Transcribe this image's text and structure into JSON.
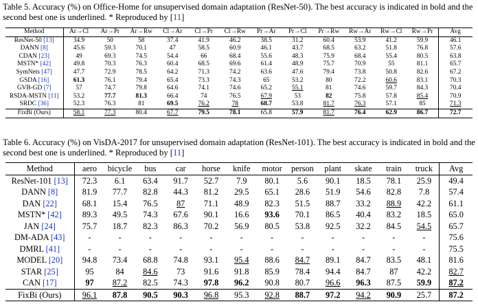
{
  "table5": {
    "caption_prefix": "Table 5. Accuracy (%) on Office-Home for unsupervised domain adaptation (ResNet-50). The best accuracy is indicated in bold and the second best one is underlined. * Reproduced by [",
    "caption_ref": "11",
    "caption_suffix": "]",
    "headers": [
      "Method",
      "Ar→Cl",
      "Ar→Pr",
      "Ar→Rw",
      "Cl→Ar",
      "Cl→Pr",
      "Cl→Rw",
      "Pr→Ar",
      "Pr→Cl",
      "Pr→Rw",
      "Rw→Ar",
      "Rw→Cl",
      "Rw→Pr",
      "Avg"
    ],
    "rows": [
      {
        "method": "ResNet-50 ",
        "ref": "[13]",
        "cells": [
          "34.9",
          "50",
          "58",
          "37.4",
          "41.9",
          "46.2",
          "38.5",
          "31.2",
          "60.4",
          "53.9",
          "41.2",
          "59.9",
          "46.1"
        ],
        "bold": [],
        "under": []
      },
      {
        "method": "DANN ",
        "ref": "[8]",
        "cells": [
          "45.6",
          "59.3",
          "70.1",
          "47",
          "58.5",
          "60.9",
          "46.1",
          "43.7",
          "68.5",
          "63.2",
          "51.8",
          "76.8",
          "57.6"
        ],
        "bold": [],
        "under": []
      },
      {
        "method": "CDAN ",
        "ref": "[23]",
        "cells": [
          "49",
          "69.3",
          "74.5",
          "54.4",
          "66",
          "68.4",
          "55.6",
          "48.3",
          "75.9",
          "68.4",
          "55.4",
          "80.5",
          "63.8"
        ],
        "bold": [],
        "under": []
      },
      {
        "method": "MSTN* ",
        "ref": "[42]",
        "cells": [
          "49.8",
          "70.3",
          "76.3",
          "60.4",
          "68.5",
          "69.6",
          "61.4",
          "48.9",
          "75.7",
          "70.9",
          "55",
          "81.1",
          "65.7"
        ],
        "bold": [],
        "under": []
      },
      {
        "method": "SymNets ",
        "ref": "[47]",
        "cells": [
          "47.7",
          "72.9",
          "78.5",
          "64.2",
          "71.3",
          "74.2",
          "63.6",
          "47.6",
          "79.4",
          "73.8",
          "50.8",
          "82.6",
          "67.2"
        ],
        "bold": [],
        "under": []
      },
      {
        "method": "GSDA ",
        "ref": "[16]",
        "cells": [
          "61.3",
          "76.1",
          "79.4",
          "65.4",
          "73.3",
          "74.3",
          "65",
          "53.2",
          "80",
          "72.2",
          "60.6",
          "83.1",
          "70.3"
        ],
        "bold": [
          0
        ],
        "under": [
          10
        ]
      },
      {
        "method": "GVB-GD ",
        "ref": "[7]",
        "cells": [
          "57",
          "74.7",
          "79.8",
          "64.6",
          "74.1",
          "74.6",
          "65.2",
          "55.1",
          "81",
          "74.6",
          "59.7",
          "84.3",
          "70.4"
        ],
        "bold": [],
        "under": [
          7
        ]
      },
      {
        "method": "RSDA-MSTN ",
        "ref": "[11]",
        "cells": [
          "53.2",
          "77.7",
          "81.3",
          "66.4",
          "74",
          "76.5",
          "67.9",
          "53",
          "82",
          "75.8",
          "57.8",
          "85.4",
          "70.9"
        ],
        "bold": [
          1,
          2,
          8
        ],
        "under": [
          6,
          11
        ]
      },
      {
        "method": "SRDC ",
        "ref": "[36]",
        "cells": [
          "52.3",
          "76.3",
          "81",
          "69.5",
          "76.2",
          "78",
          "68.7",
          "53.8",
          "81.7",
          "76.3",
          "57.1",
          "85",
          "71.3"
        ],
        "bold": [
          3,
          6
        ],
        "under": [
          4,
          5,
          8,
          9,
          12
        ]
      },
      {
        "method": "FixBi (Ours)",
        "ref": "",
        "cells": [
          "58.1",
          "77.3",
          "80.4",
          "67.7",
          "79.5",
          "78.1",
          "65.8",
          "57.9",
          "81.7",
          "76.4",
          "62.9",
          "86.7",
          "72.7"
        ],
        "bold": [
          4,
          5,
          7,
          9,
          10,
          11,
          12
        ],
        "under": [
          0,
          1,
          3,
          8
        ]
      }
    ]
  },
  "table6": {
    "caption_prefix": "Table 6. Accuracy (%) on VisDA-2017 for unsupervised domain adaptation (ResNet-101). The best accuracy is indicated in bold and the second best one is underlined. * Reproduced by [",
    "caption_ref": "11",
    "caption_suffix": "]",
    "headers": [
      "Method",
      "aero",
      "bicycle",
      "bus",
      "car",
      "horse",
      "knife",
      "motor",
      "person",
      "plant",
      "skate",
      "train",
      "truck",
      "Avg"
    ],
    "rows": [
      {
        "method": "ResNet-101 ",
        "ref": "[13]",
        "cells": [
          "72.3",
          "6.1",
          "63.4",
          "91.7",
          "52.7",
          "7.9",
          "80.1",
          "5.6",
          "90.1",
          "18.5",
          "78.1",
          "25.9",
          "49.4"
        ],
        "bold": [],
        "under": []
      },
      {
        "method": "DANN ",
        "ref": "[8]",
        "cells": [
          "81.9",
          "77.7",
          "82.8",
          "44.3",
          "81.2",
          "29.5",
          "65.1",
          "28.6",
          "51.9",
          "54.6",
          "82.8",
          "7.8",
          "57.4"
        ],
        "bold": [],
        "under": []
      },
      {
        "method": "DAN ",
        "ref": "[22]",
        "cells": [
          "68.1",
          "15.4",
          "76.5",
          "87",
          "71.1",
          "48.9",
          "82.3",
          "51.5",
          "88.7",
          "33.2",
          "88.9",
          "42.2",
          "61.1"
        ],
        "bold": [],
        "under": [
          3,
          10
        ]
      },
      {
        "method": "MSTN* ",
        "ref": "[42]",
        "cells": [
          "89.3",
          "49.5",
          "74.3",
          "67.6",
          "90.1",
          "16.6",
          "93.6",
          "70.1",
          "86.5",
          "40.4",
          "83.2",
          "18.5",
          "65.0"
        ],
        "bold": [
          6
        ],
        "under": []
      },
      {
        "method": "JAN ",
        "ref": "[24]",
        "cells": [
          "75.7",
          "18.7",
          "82.3",
          "86.3",
          "70.2",
          "56.9",
          "80.5",
          "53.8",
          "92.5",
          "32.2",
          "84.5",
          "54.5",
          "65.7"
        ],
        "bold": [],
        "under": [
          11
        ]
      },
      {
        "method": "DM-ADA ",
        "ref": "[43]",
        "cells": [
          "-",
          "-",
          "-",
          "-",
          "-",
          "-",
          "-",
          "-",
          "-",
          "-",
          "-",
          "-",
          "75.6"
        ],
        "bold": [],
        "under": []
      },
      {
        "method": "DMRL ",
        "ref": "[41]",
        "cells": [
          "-",
          "-",
          "-",
          "-",
          "-",
          "-",
          "-",
          "-",
          "-",
          "-",
          "-",
          "-",
          "75.5"
        ],
        "bold": [],
        "under": []
      },
      {
        "method": "MODEL ",
        "ref": "[20]",
        "cells": [
          "94.8",
          "73.4",
          "68.8",
          "74.8",
          "93.1",
          "95.4",
          "88.6",
          "84.7",
          "89.1",
          "84.7",
          "83.5",
          "48.1",
          "81.6"
        ],
        "bold": [],
        "under": [
          5,
          7
        ]
      },
      {
        "method": "STAR ",
        "ref": "[25]",
        "cells": [
          "95",
          "84",
          "84.6",
          "73",
          "91.6",
          "91.8",
          "85.9",
          "78.4",
          "94.4",
          "84.7",
          "87",
          "42.2",
          "82.7"
        ],
        "bold": [],
        "under": [
          2,
          12
        ]
      },
      {
        "method": "CAN ",
        "ref": "[17]",
        "cells": [
          "97",
          "87.2",
          "82.5",
          "74.3",
          "97.8",
          "96.2",
          "90.8",
          "80.7",
          "96.6",
          "96.3",
          "87.5",
          "59.9",
          "87.2"
        ],
        "bold": [
          0,
          4,
          5,
          9,
          11,
          12
        ],
        "under": [
          1,
          8,
          12
        ]
      },
      {
        "method": "FixBi (Ours)",
        "ref": "",
        "cells": [
          "96.1",
          "87.8",
          "90.5",
          "90.3",
          "96.8",
          "95.3",
          "92.8",
          "88.7",
          "97.2",
          "94.2",
          "90.9",
          "25.7",
          "87.2"
        ],
        "bold": [
          1,
          2,
          3,
          7,
          8,
          10,
          12
        ],
        "under": [
          0,
          4,
          6,
          9
        ]
      }
    ]
  }
}
